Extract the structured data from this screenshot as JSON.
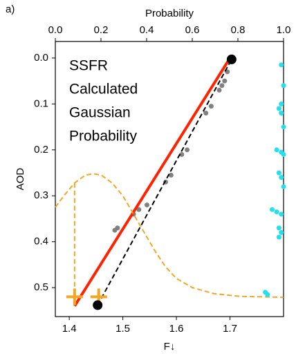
{
  "chart_data": {
    "type": "scatter",
    "panel_label": "a)",
    "x2_label": "Probability",
    "y_label": "AOD",
    "x_label": "F↓",
    "xlim": [
      1.374,
      1.8
    ],
    "xticks": [
      1.4,
      1.5,
      1.6,
      1.7
    ],
    "x2lim": [
      0,
      1
    ],
    "x2ticks": [
      {
        "value": 0,
        "label": "0.0"
      },
      0.2,
      0.4,
      0.6,
      0.8,
      {
        "value": 1,
        "label": "1.0"
      }
    ],
    "ylim": [
      0.563,
      -0.036
    ],
    "yticks": [
      {
        "value": 0,
        "label": "0.0"
      },
      0.1,
      0.2,
      0.3,
      0.4,
      0.5
    ],
    "legend": "upper left",
    "series": [
      {
        "name": "SSFR",
        "color": "#808080",
        "mode": "markers",
        "x": [
          1.485,
          1.49,
          1.52,
          1.53,
          1.545,
          1.58,
          1.59,
          1.61,
          1.62,
          1.655,
          1.665,
          1.68,
          1.685,
          1.69,
          1.695
        ],
        "values": [
          0.375,
          0.37,
          0.34,
          0.33,
          0.32,
          0.27,
          0.255,
          0.21,
          0.2,
          0.12,
          0.105,
          0.07,
          0.06,
          0.05,
          0.03
        ]
      },
      {
        "name": "Calculated",
        "color": "#ff2200",
        "mode": "line",
        "x": [
          1.41,
          1.7
        ],
        "values": [
          0.54,
          0.0
        ]
      },
      {
        "name": "Gaussian",
        "color": "#f5a623",
        "mode": "dashed",
        "x": [
          1.374,
          1.39,
          1.41,
          1.43,
          1.445,
          1.46,
          1.48,
          1.5,
          1.52,
          1.54,
          1.56,
          1.58,
          1.6,
          1.63,
          1.67,
          1.72,
          1.8
        ],
        "values": [
          0.325,
          0.3,
          0.272,
          0.255,
          0.252,
          0.255,
          0.272,
          0.3,
          0.34,
          0.38,
          0.42,
          0.455,
          0.48,
          0.5,
          0.513,
          0.519,
          0.521
        ]
      },
      {
        "name": "Probability",
        "color": "#22e0f0",
        "mode": "markers",
        "axis": "x2",
        "x": [
          0.99,
          1.0,
          0.99,
          0.98,
          0.99,
          1.0,
          0.97,
          0.99,
          1.0,
          0.98,
          0.99,
          1.0,
          0.95,
          0.97,
          0.99,
          0.98,
          0.99,
          0.98,
          0.92,
          0.93
        ],
        "values": [
          0.015,
          0.06,
          0.1,
          0.11,
          0.12,
          0.15,
          0.2,
          0.205,
          0.21,
          0.25,
          0.26,
          0.28,
          0.33,
          0.335,
          0.34,
          0.37,
          0.38,
          0.39,
          0.51,
          0.515
        ]
      },
      {
        "color": "#f5a623",
        "mode": "dashed",
        "x": [
          1.41,
          1.41
        ],
        "values": [
          0.272,
          0.52
        ]
      },
      {
        "color": "#000000",
        "mode": "dashed",
        "x": [
          1.453,
          1.703
        ],
        "values": [
          0.538,
          0.003
        ]
      },
      {
        "color": "#f5a623",
        "mode": "plus",
        "x": [
          1.41,
          1.455
        ],
        "values": [
          0.52,
          0.52
        ]
      },
      {
        "color": "#000000",
        "mode": "dot",
        "x": [
          1.703,
          1.453
        ],
        "values": [
          0.003,
          0.538
        ]
      }
    ]
  }
}
